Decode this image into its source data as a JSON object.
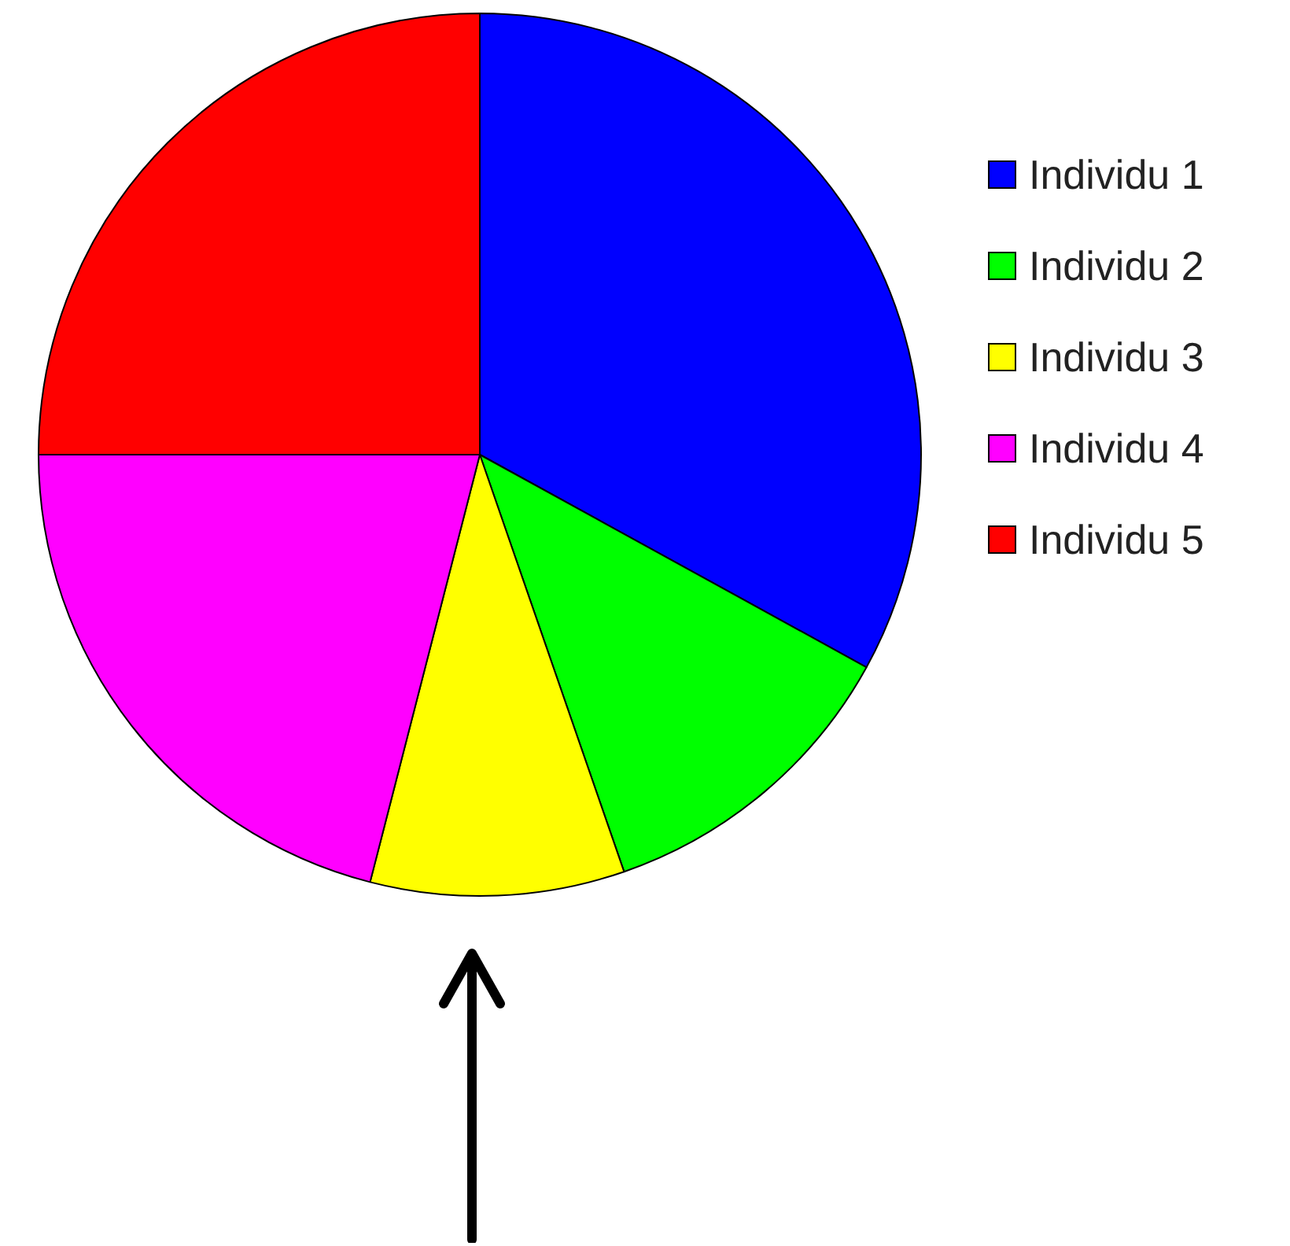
{
  "chart_data": {
    "type": "pie",
    "categories": [
      "Individu 1",
      "Individu 2",
      "Individu 3",
      "Individu 4",
      "Individu 5"
    ],
    "values": [
      33,
      11.7,
      9.3,
      21,
      25
    ],
    "colors": [
      "#0000ff",
      "#00ff00",
      "#ffff00",
      "#ff00ff",
      "#ff0000"
    ],
    "legend": "right"
  }
}
